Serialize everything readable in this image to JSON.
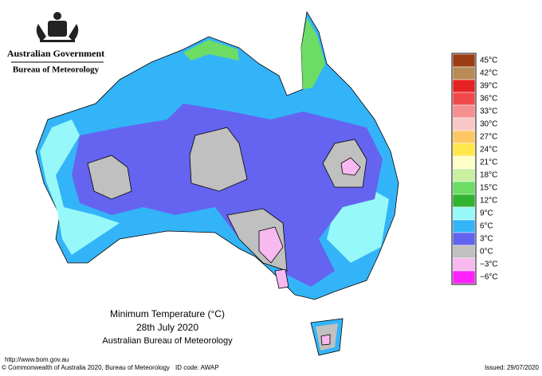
{
  "header": {
    "government": "Australian Government",
    "agency": "Bureau of Meteorology"
  },
  "legend": [
    {
      "label": "45°C",
      "color": "#9c3c14"
    },
    {
      "label": "42°C",
      "color": "#b98a55"
    },
    {
      "label": "39°C",
      "color": "#e62222"
    },
    {
      "label": "36°C",
      "color": "#f24a4a"
    },
    {
      "label": "33°C",
      "color": "#f49090"
    },
    {
      "label": "30°C",
      "color": "#f8c8c8"
    },
    {
      "label": "27°C",
      "color": "#ffc864"
    },
    {
      "label": "24°C",
      "color": "#ffe84c"
    },
    {
      "label": "21°C",
      "color": "#ffffc8"
    },
    {
      "label": "18°C",
      "color": "#c8f0a0"
    },
    {
      "label": "15°C",
      "color": "#6cdc64"
    },
    {
      "label": "12°C",
      "color": "#32b432"
    },
    {
      "label": "9°C",
      "color": "#96f8f8"
    },
    {
      "label": "6°C",
      "color": "#34b4f8"
    },
    {
      "label": "3°C",
      "color": "#6464f0"
    },
    {
      "label": "0°C",
      "color": "#c0c0c0"
    },
    {
      "label": "−3°C",
      "color": "#f8b8f0"
    },
    {
      "label": "−6°C",
      "color": "#ff22ff"
    }
  ],
  "title": {
    "line1": "Minimum Temperature (°C)",
    "line2": "28th July 2020",
    "line3": "Australian Bureau of Meteorology"
  },
  "footer": {
    "url": "http://www.bom.gov.au",
    "copyright": "© Commonwealth of Australia 2020, Bureau of Meteorology",
    "id_code": "ID code: AWAP",
    "issued": "Issued: 29/07/2020"
  }
}
